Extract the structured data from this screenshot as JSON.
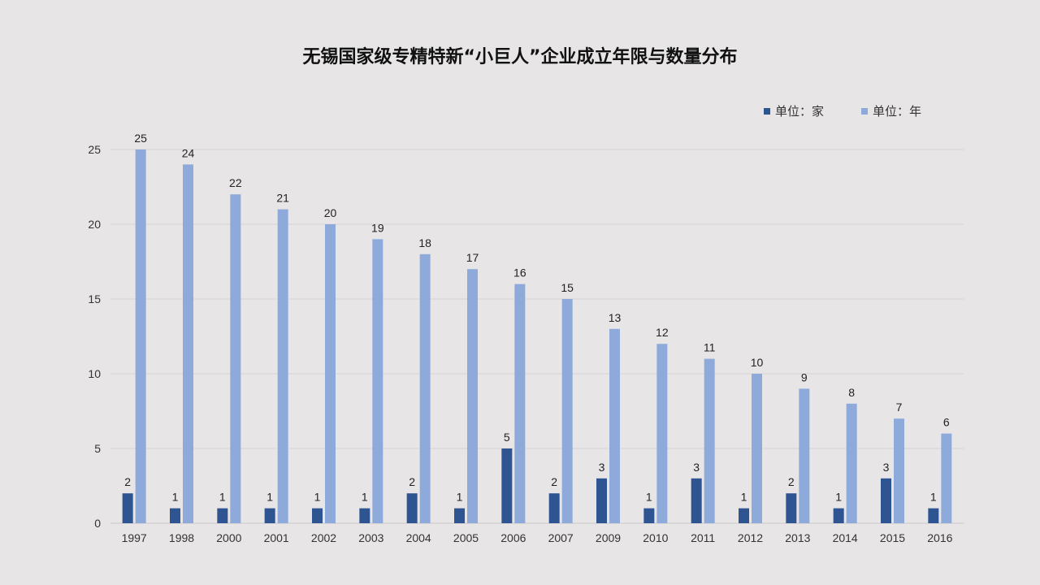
{
  "chart_data": {
    "type": "bar",
    "title": "无锡国家级专精特新“小巨人”企业成立年限与数量分布",
    "categories": [
      "1997",
      "1998",
      "2000",
      "2001",
      "2002",
      "2003",
      "2004",
      "2005",
      "2006",
      "2007",
      "2009",
      "2010",
      "2011",
      "2012",
      "2013",
      "2014",
      "2015",
      "2016"
    ],
    "series": [
      {
        "name": "单位：家",
        "color": "#2f5492",
        "values": [
          2,
          1,
          1,
          1,
          1,
          1,
          2,
          1,
          5,
          2,
          3,
          1,
          3,
          1,
          2,
          1,
          3,
          1
        ]
      },
      {
        "name": "单位：年",
        "color": "#8eaadb",
        "values": [
          25,
          24,
          22,
          21,
          20,
          19,
          18,
          17,
          16,
          15,
          13,
          12,
          11,
          10,
          9,
          8,
          7,
          6
        ]
      }
    ],
    "y_ticks": [
      "0",
      "5",
      "10",
      "15",
      "20",
      "25"
    ],
    "ylim": [
      0,
      25
    ],
    "grid": true,
    "legend_position": "top-right"
  }
}
